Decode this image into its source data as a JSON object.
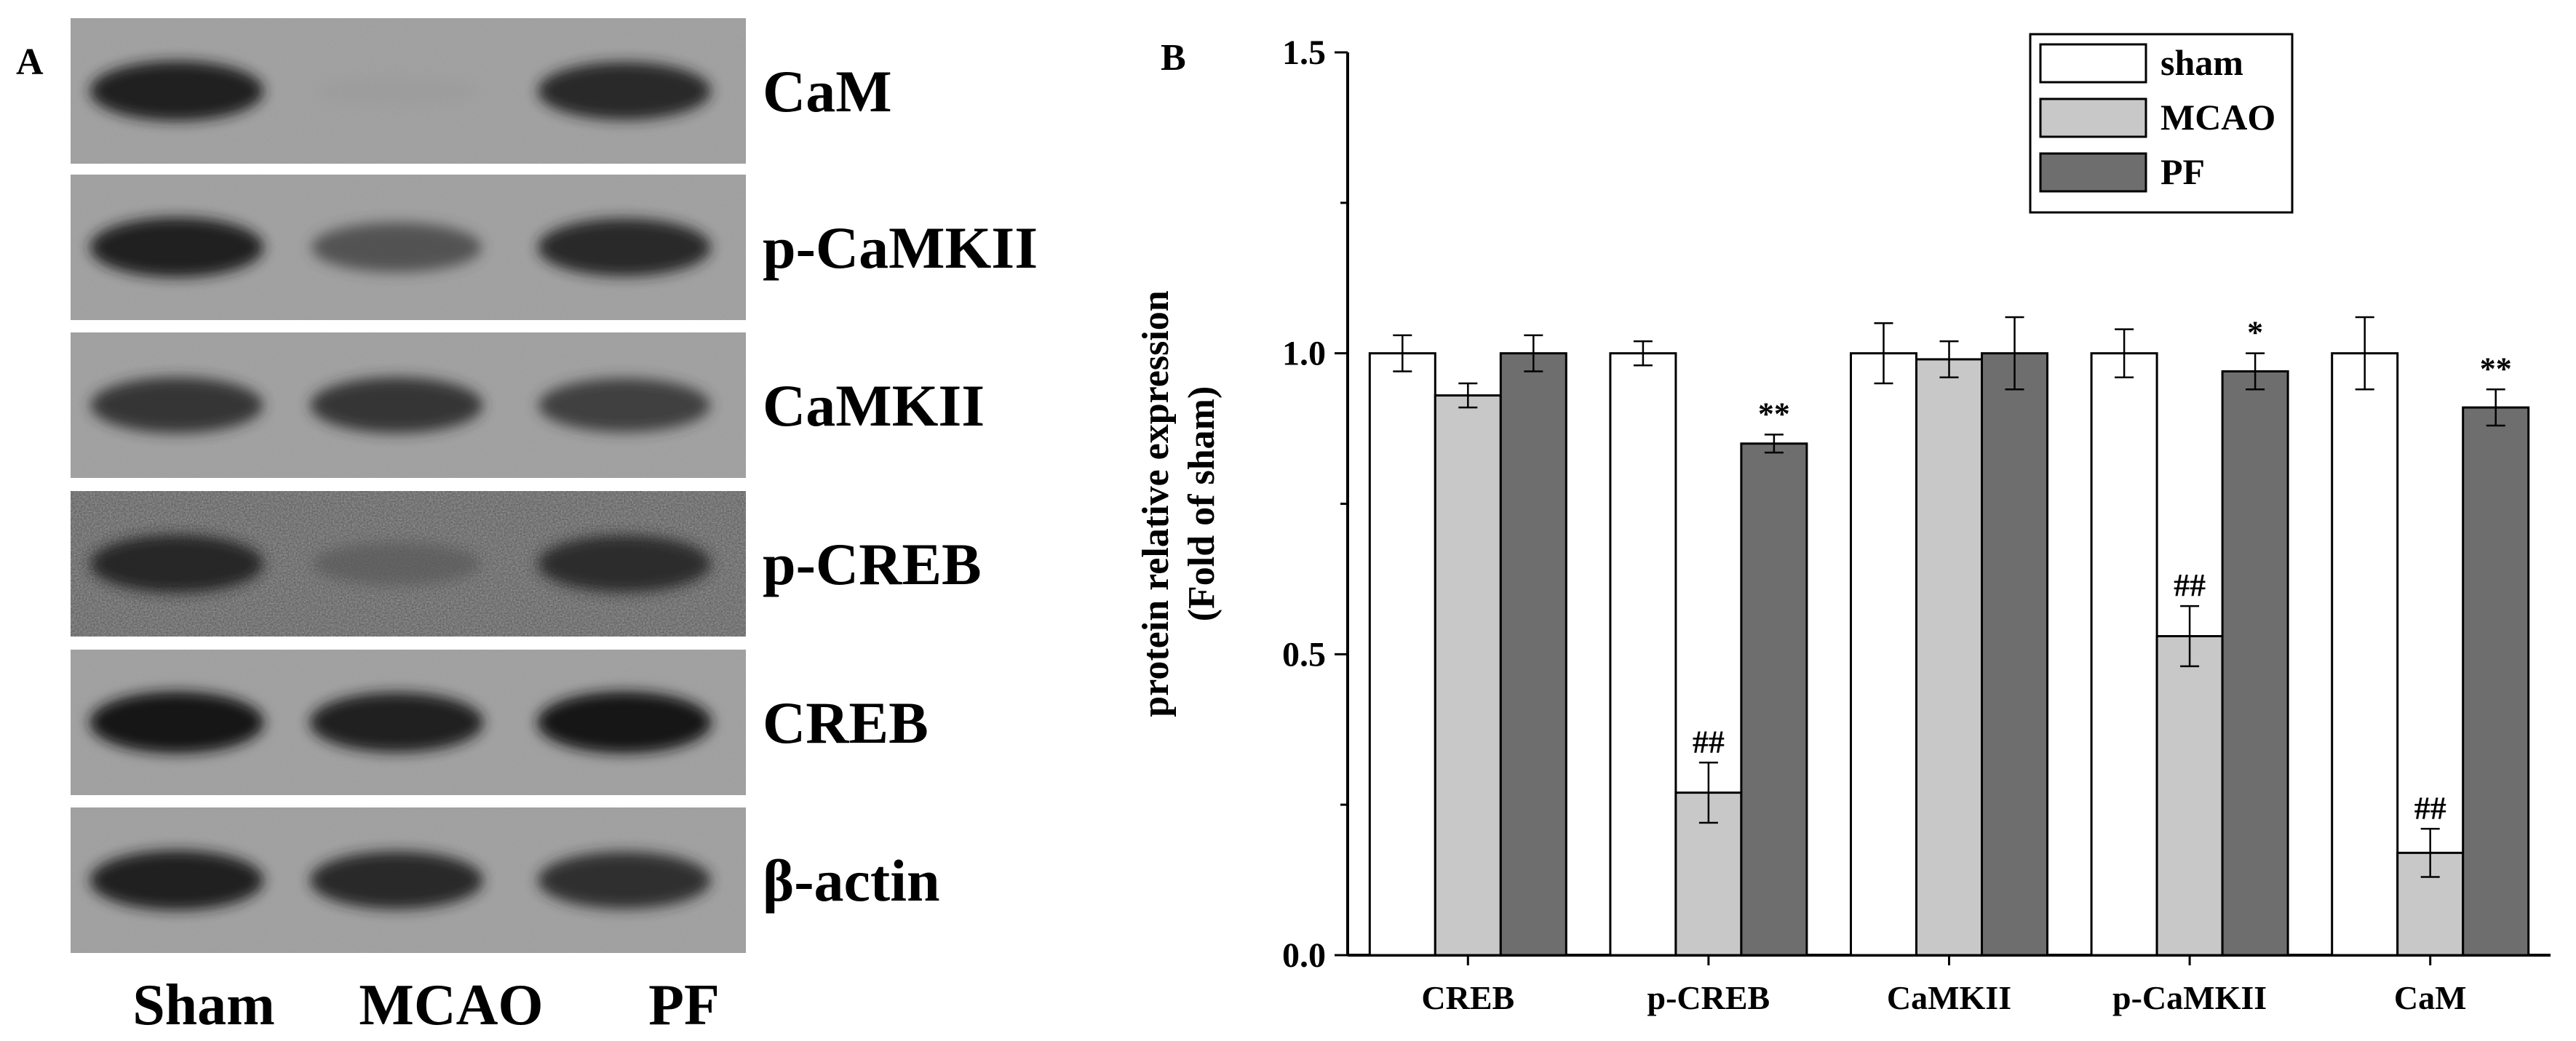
{
  "panel_a": {
    "letter": "A",
    "lanes": [
      "Sham",
      "MCAO",
      "PF"
    ],
    "blots": [
      {
        "label": "CaM",
        "intensity": [
          0.95,
          0.12,
          0.9
        ],
        "noise": "low"
      },
      {
        "label": "p-CaMKII",
        "intensity": [
          0.95,
          0.7,
          0.9
        ],
        "noise": "low"
      },
      {
        "label": "CaMKII",
        "intensity": [
          0.85,
          0.85,
          0.8
        ],
        "noise": "low"
      },
      {
        "label": "p-CREB",
        "intensity": [
          0.9,
          0.55,
          0.88
        ],
        "noise": "high"
      },
      {
        "label": "CREB",
        "intensity": [
          1.0,
          0.95,
          1.0
        ],
        "noise": "low"
      },
      {
        "label": "β-actin",
        "intensity": [
          0.95,
          0.9,
          0.88
        ],
        "noise": "low"
      }
    ]
  },
  "chart_data": {
    "type": "bar",
    "panel_letter": "B",
    "title": "",
    "xlabel": "",
    "ylabel": "protein relative expression",
    "ylabel_line2": "(Fold of sham)",
    "ylim": [
      0.0,
      1.5
    ],
    "yticks": [
      "0.0",
      "0.5",
      "1.0",
      "1.5"
    ],
    "categories": [
      "CREB",
      "p-CREB",
      "CaMKII",
      "p-CaMKII",
      "CaM"
    ],
    "series": [
      {
        "name": "sham",
        "color": "#ffffff",
        "values": [
          1.0,
          1.0,
          1.0,
          1.0,
          1.0
        ],
        "errors": [
          0.03,
          0.02,
          0.05,
          0.04,
          0.06
        ],
        "annotations": [
          "",
          "",
          "",
          "",
          ""
        ]
      },
      {
        "name": "MCAO",
        "color": "#c8c8c8",
        "values": [
          0.93,
          0.27,
          0.99,
          0.53,
          0.17
        ],
        "errors": [
          0.02,
          0.05,
          0.03,
          0.05,
          0.04
        ],
        "annotations": [
          "",
          "##",
          "",
          "##",
          "##"
        ]
      },
      {
        "name": "PF",
        "color": "#6e6e6e",
        "values": [
          1.0,
          0.85,
          1.0,
          0.97,
          0.91
        ],
        "errors": [
          0.03,
          0.015,
          0.06,
          0.03,
          0.03
        ],
        "annotations": [
          "",
          "**",
          "",
          "*",
          "**"
        ]
      }
    ],
    "legend_position": "top-right",
    "grid": false
  }
}
